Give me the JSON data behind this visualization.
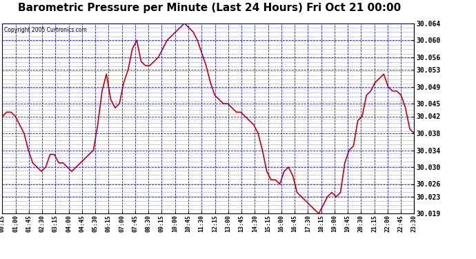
{
  "title": "Barometric Pressure per Minute (Last 24 Hours) Fri Oct 21 00:00",
  "copyright": "Copyright 2005 Curtronics.com",
  "title_fontsize": 11,
  "background_color": "#ffffff",
  "plot_bg_color": "#ffffff",
  "line_color": "#cc0000",
  "grid_color": "#0000cc",
  "ylim": [
    30.019,
    30.064
  ],
  "yticks": [
    30.019,
    30.023,
    30.026,
    30.03,
    30.034,
    30.038,
    30.042,
    30.045,
    30.049,
    30.053,
    30.056,
    30.06,
    30.064
  ],
  "xtick_labels": [
    "00:15",
    "01:00",
    "01:45",
    "02:30",
    "03:15",
    "04:00",
    "04:45",
    "05:30",
    "06:15",
    "07:00",
    "07:45",
    "08:30",
    "09:15",
    "10:00",
    "10:45",
    "11:30",
    "12:15",
    "13:00",
    "13:45",
    "14:30",
    "15:15",
    "16:00",
    "16:45",
    "17:30",
    "18:15",
    "19:00",
    "19:45",
    "20:30",
    "21:15",
    "22:00",
    "22:45",
    "23:30"
  ],
  "pressure_values": [
    30.042,
    30.043,
    30.043,
    30.042,
    30.04,
    30.038,
    30.034,
    30.031,
    30.03,
    30.029,
    30.03,
    30.033,
    30.033,
    30.031,
    30.031,
    30.03,
    30.029,
    30.03,
    30.031,
    30.032,
    30.033,
    30.034,
    30.04,
    30.048,
    30.052,
    30.046,
    30.044,
    30.045,
    30.05,
    30.053,
    30.058,
    30.06,
    30.055,
    30.054,
    30.054,
    30.055,
    30.056,
    30.058,
    30.06,
    30.061,
    30.062,
    30.063,
    30.064,
    30.063,
    30.062,
    30.06,
    30.057,
    30.054,
    30.05,
    30.047,
    30.046,
    30.045,
    30.045,
    30.044,
    30.043,
    30.043,
    30.042,
    30.041,
    30.04,
    30.038,
    30.034,
    30.029,
    30.027,
    30.027,
    30.026,
    30.029,
    30.03,
    30.028,
    30.024,
    30.023,
    30.022,
    30.021,
    30.02,
    30.019,
    30.021,
    30.023,
    30.024,
    30.023,
    30.024,
    30.031,
    30.034,
    30.035,
    30.041,
    30.042,
    30.047,
    30.048,
    30.05,
    30.051,
    30.052,
    30.049,
    30.048,
    30.048,
    30.047,
    30.044,
    30.039,
    30.038
  ]
}
